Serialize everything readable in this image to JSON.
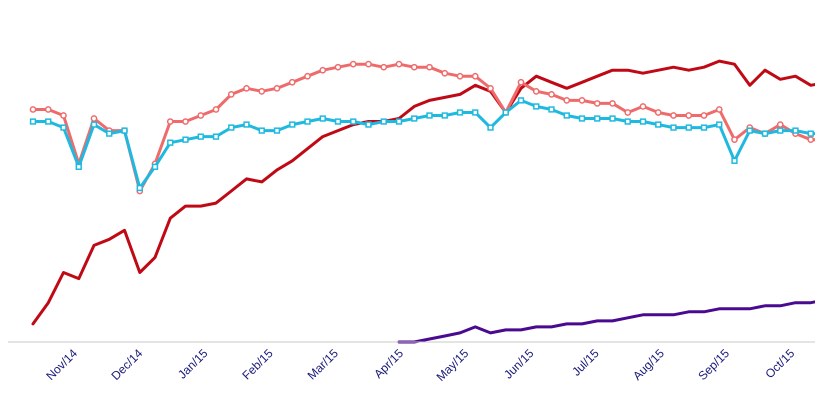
{
  "chart_data": {
    "type": "line",
    "title": "",
    "xlabel": "",
    "ylabel": "",
    "x_ticks": [
      "Nov/14",
      "Dec/14",
      "Jan/15",
      "Feb/15",
      "Mar/15",
      "Apr/15",
      "May/15",
      "Jun/15",
      "Jul/15",
      "Aug/15",
      "Sep/15",
      "Oct/15"
    ],
    "ylim": [
      0,
      100
    ],
    "grid": false,
    "legend": "none",
    "series": [
      {
        "color": "#bf0a16",
        "marker": "none",
        "points": [
          [
            0,
            6
          ],
          [
            0.5,
            13
          ],
          [
            1,
            23
          ],
          [
            1.5,
            21
          ],
          [
            2,
            32
          ],
          [
            2.5,
            34
          ],
          [
            3,
            37
          ],
          [
            3.5,
            23
          ],
          [
            4,
            28
          ],
          [
            4.5,
            41
          ],
          [
            5,
            45
          ],
          [
            5.5,
            45
          ],
          [
            6,
            46
          ],
          [
            6.5,
            50
          ],
          [
            7,
            54
          ],
          [
            7.5,
            53
          ],
          [
            8,
            57
          ],
          [
            8.5,
            60
          ],
          [
            9,
            64
          ],
          [
            9.5,
            68
          ],
          [
            10,
            70
          ],
          [
            10.5,
            72
          ],
          [
            11,
            73
          ],
          [
            11.5,
            73
          ],
          [
            12,
            74
          ],
          [
            12.5,
            78
          ],
          [
            13,
            80
          ],
          [
            13.5,
            81
          ],
          [
            14,
            82
          ],
          [
            14.5,
            85
          ],
          [
            15,
            83
          ],
          [
            15.5,
            76
          ],
          [
            16,
            84
          ],
          [
            16.5,
            88
          ],
          [
            17,
            86
          ],
          [
            17.5,
            84
          ],
          [
            18,
            86
          ],
          [
            18.5,
            88
          ],
          [
            19,
            90
          ],
          [
            19.5,
            90
          ],
          [
            20,
            89
          ],
          [
            20.5,
            90
          ],
          [
            21,
            91
          ],
          [
            21.5,
            90
          ],
          [
            22,
            91
          ],
          [
            22.5,
            93
          ],
          [
            23,
            92
          ],
          [
            23.5,
            85
          ],
          [
            24,
            90
          ],
          [
            24.5,
            87
          ],
          [
            25,
            88
          ],
          [
            25.5,
            85
          ],
          [
            26,
            86
          ],
          [
            26.5,
            84
          ],
          [
            27,
            86
          ]
        ]
      },
      {
        "color": "#ef6b6b",
        "marker": "circle",
        "points": [
          [
            0,
            77
          ],
          [
            0.5,
            77
          ],
          [
            1,
            75
          ],
          [
            1.5,
            59
          ],
          [
            2,
            74
          ],
          [
            2.5,
            70
          ],
          [
            3,
            70
          ],
          [
            3.5,
            50
          ],
          [
            4,
            59
          ],
          [
            4.5,
            73
          ],
          [
            5,
            73
          ],
          [
            5.5,
            75
          ],
          [
            6,
            77
          ],
          [
            6.5,
            82
          ],
          [
            7,
            84
          ],
          [
            7.5,
            83
          ],
          [
            8,
            84
          ],
          [
            8.5,
            86
          ],
          [
            9,
            88
          ],
          [
            9.5,
            90
          ],
          [
            10,
            91
          ],
          [
            10.5,
            92
          ],
          [
            11,
            92
          ],
          [
            11.5,
            91
          ],
          [
            12,
            92
          ],
          [
            12.5,
            91
          ],
          [
            13,
            91
          ],
          [
            13.5,
            89
          ],
          [
            14,
            88
          ],
          [
            14.5,
            88
          ],
          [
            15,
            84
          ],
          [
            15.5,
            76
          ],
          [
            16,
            86
          ],
          [
            16.5,
            83
          ],
          [
            17,
            82
          ],
          [
            17.5,
            80
          ],
          [
            18,
            80
          ],
          [
            18.5,
            79
          ],
          [
            19,
            79
          ],
          [
            19.5,
            76
          ],
          [
            20,
            78
          ],
          [
            20.5,
            76
          ],
          [
            21,
            75
          ],
          [
            21.5,
            75
          ],
          [
            22,
            75
          ],
          [
            22.5,
            77
          ],
          [
            23,
            67
          ],
          [
            23.5,
            71
          ],
          [
            24,
            69
          ],
          [
            24.5,
            72
          ],
          [
            25,
            69
          ],
          [
            25.5,
            67
          ],
          [
            26,
            67
          ],
          [
            26.5,
            67
          ],
          [
            27,
            67
          ]
        ]
      },
      {
        "color": "#1fb9e0",
        "marker": "square",
        "points": [
          [
            0,
            73
          ],
          [
            0.5,
            73
          ],
          [
            1,
            71
          ],
          [
            1.5,
            58
          ],
          [
            2,
            72
          ],
          [
            2.5,
            69
          ],
          [
            3,
            70
          ],
          [
            3.5,
            51
          ],
          [
            4,
            58
          ],
          [
            4.5,
            66
          ],
          [
            5,
            67
          ],
          [
            5.5,
            68
          ],
          [
            6,
            68
          ],
          [
            6.5,
            71
          ],
          [
            7,
            72
          ],
          [
            7.5,
            70
          ],
          [
            8,
            70
          ],
          [
            8.5,
            72
          ],
          [
            9,
            73
          ],
          [
            9.5,
            74
          ],
          [
            10,
            73
          ],
          [
            10.5,
            73
          ],
          [
            11,
            72
          ],
          [
            11.5,
            73
          ],
          [
            12,
            73
          ],
          [
            12.5,
            74
          ],
          [
            13,
            75
          ],
          [
            13.5,
            75
          ],
          [
            14,
            76
          ],
          [
            14.5,
            76
          ],
          [
            15,
            71
          ],
          [
            15.5,
            76
          ],
          [
            16,
            80
          ],
          [
            16.5,
            78
          ],
          [
            17,
            77
          ],
          [
            17.5,
            75
          ],
          [
            18,
            74
          ],
          [
            18.5,
            74
          ],
          [
            19,
            74
          ],
          [
            19.5,
            73
          ],
          [
            20,
            73
          ],
          [
            20.5,
            72
          ],
          [
            21,
            71
          ],
          [
            21.5,
            71
          ],
          [
            22,
            71
          ],
          [
            22.5,
            72
          ],
          [
            23,
            60
          ],
          [
            23.5,
            70
          ],
          [
            24,
            69
          ],
          [
            24.5,
            70
          ],
          [
            25,
            70
          ],
          [
            25.5,
            69
          ],
          [
            26,
            69
          ],
          [
            26.5,
            69
          ],
          [
            27,
            69
          ]
        ]
      },
      {
        "color": "#4a0a8f",
        "marker": "none",
        "points": [
          [
            12,
            0
          ],
          [
            12.5,
            0
          ],
          [
            13,
            1
          ],
          [
            13.5,
            2
          ],
          [
            14,
            3
          ],
          [
            14.5,
            5
          ],
          [
            15,
            3
          ],
          [
            15.5,
            4
          ],
          [
            16,
            4
          ],
          [
            16.5,
            5
          ],
          [
            17,
            5
          ],
          [
            17.5,
            6
          ],
          [
            18,
            6
          ],
          [
            18.5,
            7
          ],
          [
            19,
            7
          ],
          [
            19.5,
            8
          ],
          [
            20,
            9
          ],
          [
            20.5,
            9
          ],
          [
            21,
            9
          ],
          [
            21.5,
            10
          ],
          [
            22,
            10
          ],
          [
            22.5,
            11
          ],
          [
            23,
            11
          ],
          [
            23.5,
            11
          ],
          [
            24,
            12
          ],
          [
            24.5,
            12
          ],
          [
            25,
            13
          ],
          [
            25.5,
            13
          ],
          [
            26,
            14
          ],
          [
            26.5,
            14
          ],
          [
            27,
            14
          ]
        ]
      }
    ]
  }
}
